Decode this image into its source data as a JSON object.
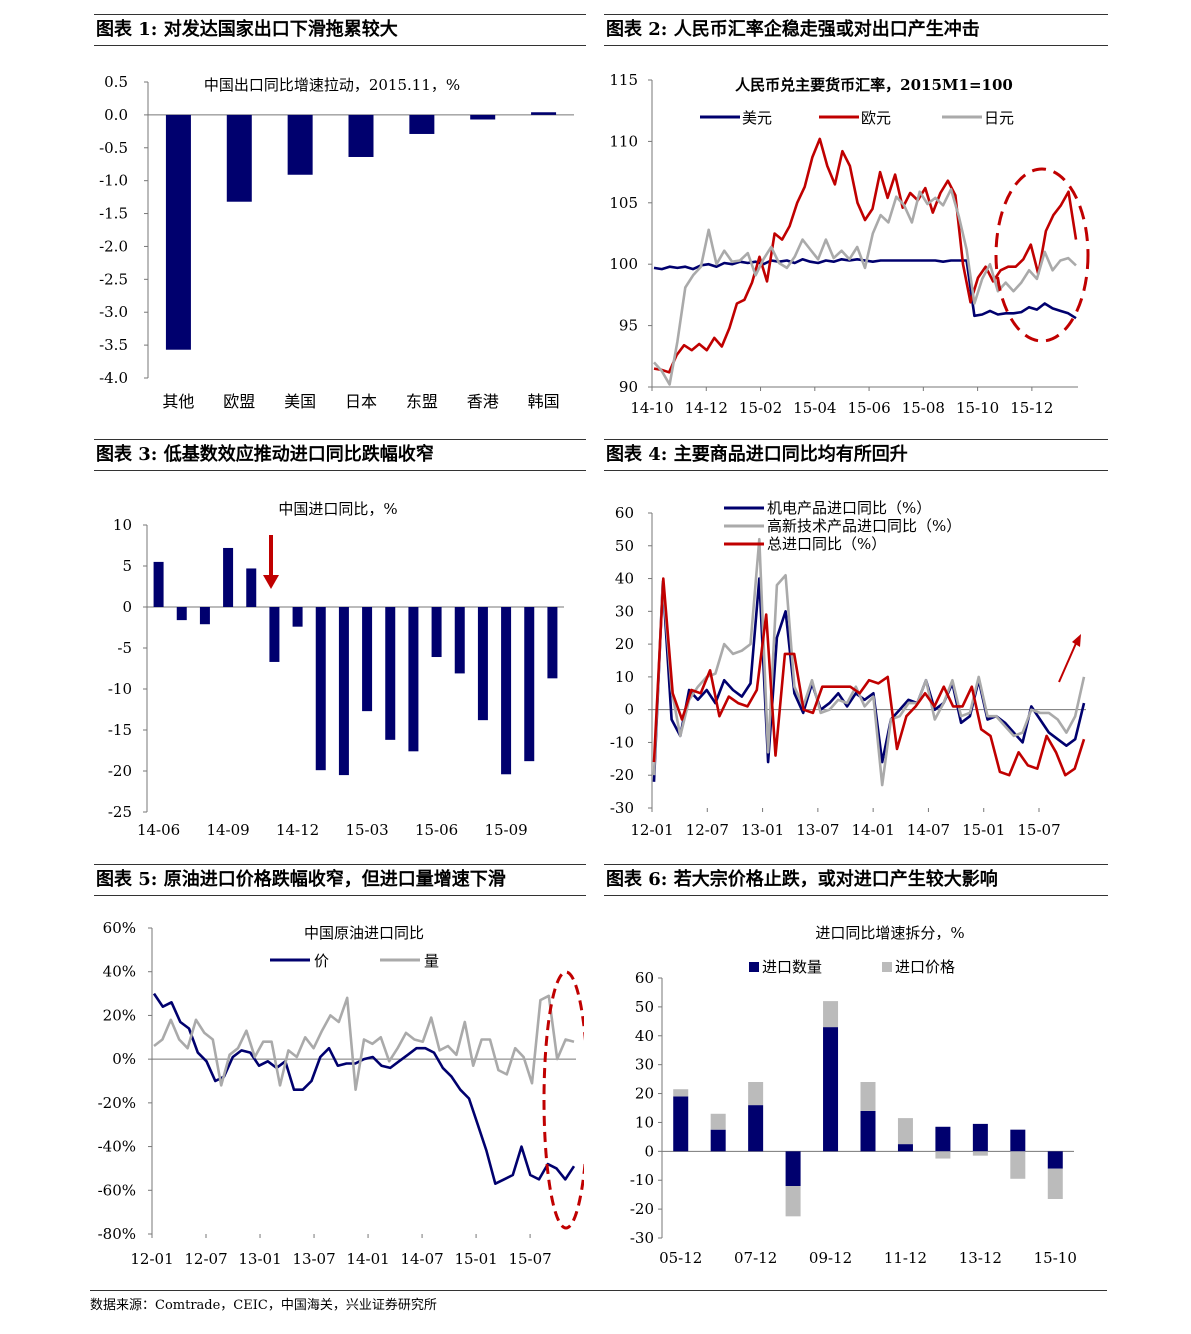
{
  "panels": [
    {
      "title": "图表 1:  对发达国家出口下滑拖累较大"
    },
    {
      "title": "图表 2:  人民币汇率企稳走强或对出口产生冲击"
    },
    {
      "title": "图表 3:  低基数效应推动进口同比跌幅收窄"
    },
    {
      "title": "图表 4:  主要商品进口同比均有所回升"
    },
    {
      "title": "图表 5:  原油进口价格跌幅收窄，但进口量增速下滑"
    },
    {
      "title": "图表 6:  若大宗价格止跌，或对进口产生较大影响"
    }
  ],
  "footer": {
    "source": "数据来源：Comtrade，CEIC，中国海关，兴业证券研究所"
  },
  "chart_data": [
    {
      "id": "c1",
      "type": "bar",
      "title": "中国出口同比增速拉动，2015.11，%",
      "categories": [
        "其他",
        "欧盟",
        "美国",
        "日本",
        "东盟",
        "香港",
        "韩国"
      ],
      "values": [
        -3.57,
        -1.32,
        -0.91,
        -0.64,
        -0.29,
        -0.07,
        0.04
      ],
      "ylim": [
        -4.0,
        0.5
      ],
      "yticks": [
        "0.5",
        "0.0",
        "-0.5",
        "-1.0",
        "-1.5",
        "-2.0",
        "-2.5",
        "-3.0",
        "-3.5",
        "-4.0"
      ],
      "color": "#00006e"
    },
    {
      "id": "c2",
      "type": "line",
      "title": "人民币兑主要货币汇率，2015M1=100",
      "xticks": [
        "14-10",
        "14-12",
        "15-02",
        "15-04",
        "15-06",
        "15-08",
        "15-10",
        "15-12"
      ],
      "yticks": [
        "115",
        "110",
        "105",
        "100",
        "95",
        "90"
      ],
      "ylim": [
        90,
        115
      ],
      "series": [
        {
          "name": "美元",
          "color": "#00006e",
          "values": [
            99.7,
            99.6,
            99.8,
            99.7,
            99.8,
            99.6,
            99.9,
            100.0,
            99.8,
            100.1,
            100.0,
            100.2,
            100.1,
            100.2,
            100.0,
            100.3,
            100.2,
            100.3,
            100.1,
            100.4,
            100.2,
            100.1,
            100.3,
            100.2,
            100.4,
            100.3,
            100.4,
            100.3,
            100.2,
            100.3,
            100.3,
            100.3,
            100.3,
            100.3,
            100.3,
            100.3,
            100.3,
            100.2,
            100.3,
            100.3,
            100.3,
            95.8,
            95.9,
            96.2,
            95.9,
            96.0,
            96.0,
            96.1,
            96.5,
            96.3,
            96.8,
            96.4,
            96.2,
            96.0,
            95.6
          ]
        },
        {
          "name": "欧元",
          "color": "#c00000",
          "values": [
            91.5,
            91.4,
            91.2,
            92.6,
            93.4,
            93.0,
            93.5,
            93.0,
            94.0,
            93.3,
            94.8,
            96.8,
            97.1,
            98.5,
            100.6,
            98.6,
            102.5,
            102.0,
            103.1,
            105.0,
            106.3,
            108.7,
            110.2,
            108.0,
            106.5,
            109.2,
            108.0,
            105.0,
            103.6,
            104.5,
            107.5,
            105.4,
            107.3,
            104.6,
            105.8,
            105.2,
            106.2,
            104.2,
            105.8,
            106.8,
            105.6,
            100.0,
            96.9,
            98.9,
            99.8,
            98.6,
            99.5,
            99.8,
            99.8,
            100.4,
            101.6,
            99.2,
            102.7,
            104.0,
            104.8,
            105.9,
            102.0
          ]
        },
        {
          "name": "日元",
          "color": "#aaaaaa",
          "values": [
            92.0,
            91.3,
            90.2,
            93.7,
            98.1,
            99.1,
            99.8,
            102.8,
            100.0,
            101.1,
            100.2,
            100.3,
            100.9,
            99.1,
            100.4,
            101.4,
            100.1,
            99.7,
            100.6,
            102.0,
            101.2,
            100.4,
            102.0,
            100.5,
            101.1,
            100.4,
            101.4,
            99.7,
            102.5,
            104.0,
            103.4,
            105.5,
            104.8,
            103.4,
            105.9,
            104.9,
            105.4,
            104.8,
            106.1,
            103.9,
            101.2,
            96.8,
            98.8,
            100.0,
            97.8,
            98.5,
            97.8,
            98.5,
            99.5,
            98.8,
            101.0,
            99.5,
            100.3,
            100.5,
            99.9
          ]
        }
      ]
    },
    {
      "id": "c3",
      "type": "bar",
      "title": "中国进口同比，%",
      "xticks": [
        "14-06",
        "14-09",
        "14-12",
        "15-03",
        "15-06",
        "15-09"
      ],
      "values": [
        5.5,
        -1.6,
        -2.1,
        7.2,
        4.7,
        -6.7,
        -2.4,
        -19.9,
        -20.5,
        -12.7,
        -16.2,
        -17.6,
        -6.1,
        -8.1,
        -13.8,
        -20.4,
        -18.8,
        -8.7
      ],
      "ylim": [
        -25,
        10
      ],
      "yticks": [
        "10",
        "5",
        "0",
        "-5",
        "-10",
        "-15",
        "-20",
        "-25"
      ],
      "color": "#00006e"
    },
    {
      "id": "c4",
      "type": "line",
      "xticks": [
        "12-01",
        "12-07",
        "13-01",
        "13-07",
        "14-01",
        "14-07",
        "15-01",
        "15-07"
      ],
      "yticks": [
        "60",
        "50",
        "40",
        "30",
        "20",
        "10",
        "0",
        "-10",
        "-20",
        "-30"
      ],
      "ylim": [
        -30,
        60
      ],
      "series": [
        {
          "name": "机电产品进口同比（%）",
          "color": "#00006e",
          "values": [
            -22.0,
            39.0,
            -3.0,
            -8.0,
            6.0,
            3.0,
            6.0,
            2.0,
            9.0,
            6.0,
            4.0,
            8.0,
            40.0,
            -16.0,
            22.0,
            30.0,
            5.0,
            -1.0,
            8.0,
            0.0,
            2.0,
            5.0,
            1.0,
            5.0,
            3.0,
            5.0,
            -16.0,
            -3.0,
            0.0,
            3.0,
            2.0,
            9.0,
            0.0,
            2.0,
            8.0,
            -4.0,
            -2.0,
            9.0,
            -3.0,
            -2.0,
            -4.0,
            -7.0,
            -10.0,
            1.0,
            -3.0,
            -7.0,
            -9.0,
            -11.0,
            -9.0,
            2.0
          ]
        },
        {
          "name": "高新技术产品进口同比（%）",
          "color": "#aaaaaa",
          "values": [
            -20.0,
            39.0,
            6.0,
            -8.0,
            3.0,
            7.0,
            10.0,
            11.0,
            20.0,
            17.0,
            18.0,
            20.0,
            52.0,
            -13.0,
            38.0,
            41.0,
            7.0,
            1.0,
            9.0,
            -1.0,
            0.0,
            3.0,
            2.0,
            7.0,
            1.0,
            4.0,
            -23.0,
            -3.0,
            -2.0,
            2.0,
            2.0,
            9.0,
            -3.0,
            2.0,
            9.0,
            -2.0,
            -1.0,
            10.0,
            -2.0,
            -2.0,
            -5.0,
            -8.0,
            -7.0,
            0.0,
            -1.0,
            -1.0,
            -3.0,
            -7.0,
            -2.0,
            10.0
          ]
        },
        {
          "name": "总进口同比（%）",
          "color": "#c00000",
          "values": [
            -16.0,
            40.0,
            5.0,
            -3.0,
            6.0,
            5.0,
            12.0,
            -2.0,
            4.0,
            2.0,
            1.0,
            6.0,
            29.0,
            -14.0,
            17.0,
            17.0,
            0.0,
            -1.0,
            7.0,
            7.0,
            7.0,
            7.0,
            5.0,
            9.0,
            8.0,
            10.0,
            -12.0,
            -2.0,
            1.0,
            5.0,
            1.0,
            7.0,
            1.0,
            1.0,
            7.0,
            -6.0,
            -8.0,
            -19.0,
            -20.0,
            -13.0,
            -17.0,
            -18.0,
            -8.0,
            -13.0,
            -20.0,
            -18.0,
            -9.0
          ]
        }
      ]
    },
    {
      "id": "c5",
      "type": "line",
      "title": "中国原油进口同比",
      "xticks": [
        "12-01",
        "12-07",
        "13-01",
        "13-07",
        "14-01",
        "14-07",
        "15-01",
        "15-07"
      ],
      "yticks": [
        "60%",
        "40%",
        "20%",
        "0%",
        "-20%",
        "-40%",
        "-60%",
        "-80%"
      ],
      "ylim": [
        -80,
        60
      ],
      "series": [
        {
          "name": "价",
          "color": "#00006e",
          "values": [
            30.0,
            24.0,
            26.0,
            17.0,
            14.0,
            3.0,
            -1.0,
            -10.0,
            -8.0,
            1.0,
            4.0,
            3.0,
            -3.0,
            -1.0,
            -4.0,
            -1.0,
            -14.0,
            -14.0,
            -10.0,
            1.0,
            5.0,
            -3.0,
            -2.0,
            -2.0,
            0.0,
            1.0,
            -3.0,
            -4.0,
            -1.0,
            2.0,
            5.0,
            5.0,
            3.0,
            -4.0,
            -8.0,
            -14.0,
            -18.0,
            -30.0,
            -42.0,
            -57.0,
            -55.0,
            -53.0,
            -40.0,
            -53.0,
            -55.0,
            -48.0,
            -50.0,
            -55.0,
            -49.0
          ]
        },
        {
          "name": "量",
          "color": "#aaaaaa",
          "values": [
            6.0,
            9.0,
            18.0,
            9.0,
            5.0,
            18.0,
            12.0,
            9.0,
            -12.0,
            2.0,
            5.0,
            13.0,
            1.0,
            8.0,
            8.0,
            -12.0,
            4.0,
            1.0,
            10.0,
            5.0,
            13.0,
            20.0,
            17.0,
            28.0,
            -14.0,
            9.0,
            7.0,
            10.0,
            -1.0,
            5.0,
            12.0,
            9.0,
            8.0,
            19.0,
            4.0,
            6.0,
            2.0,
            17.0,
            -3.0,
            9.0,
            9.0,
            -5.0,
            -7.0,
            5.0,
            1.0,
            -11.0,
            27.0,
            29.0,
            0.0,
            9.0,
            8.0
          ]
        }
      ]
    },
    {
      "id": "c6",
      "type": "bar",
      "title": "进口同比增速拆分，%",
      "xticks": [
        "05-12",
        "07-12",
        "09-12",
        "11-12",
        "13-12",
        "15-10"
      ],
      "yticks": [
        "60",
        "50",
        "40",
        "30",
        "20",
        "10",
        "0",
        "-10",
        "-20",
        "-30"
      ],
      "ylim": [
        -30,
        60
      ],
      "series": [
        {
          "name": "进口数量",
          "color": "#00006e",
          "values": [
            19.0,
            7.5,
            16.0,
            -12.0,
            43.0,
            14.0,
            2.5,
            8.5,
            9.5,
            7.5,
            -6.0
          ]
        },
        {
          "name": "进口价格",
          "color": "#bbbbbb",
          "values": [
            2.5,
            5.5,
            8.0,
            -10.5,
            9.0,
            10.0,
            9.0,
            -2.5,
            -1.5,
            -9.5,
            -10.5
          ]
        }
      ]
    }
  ]
}
